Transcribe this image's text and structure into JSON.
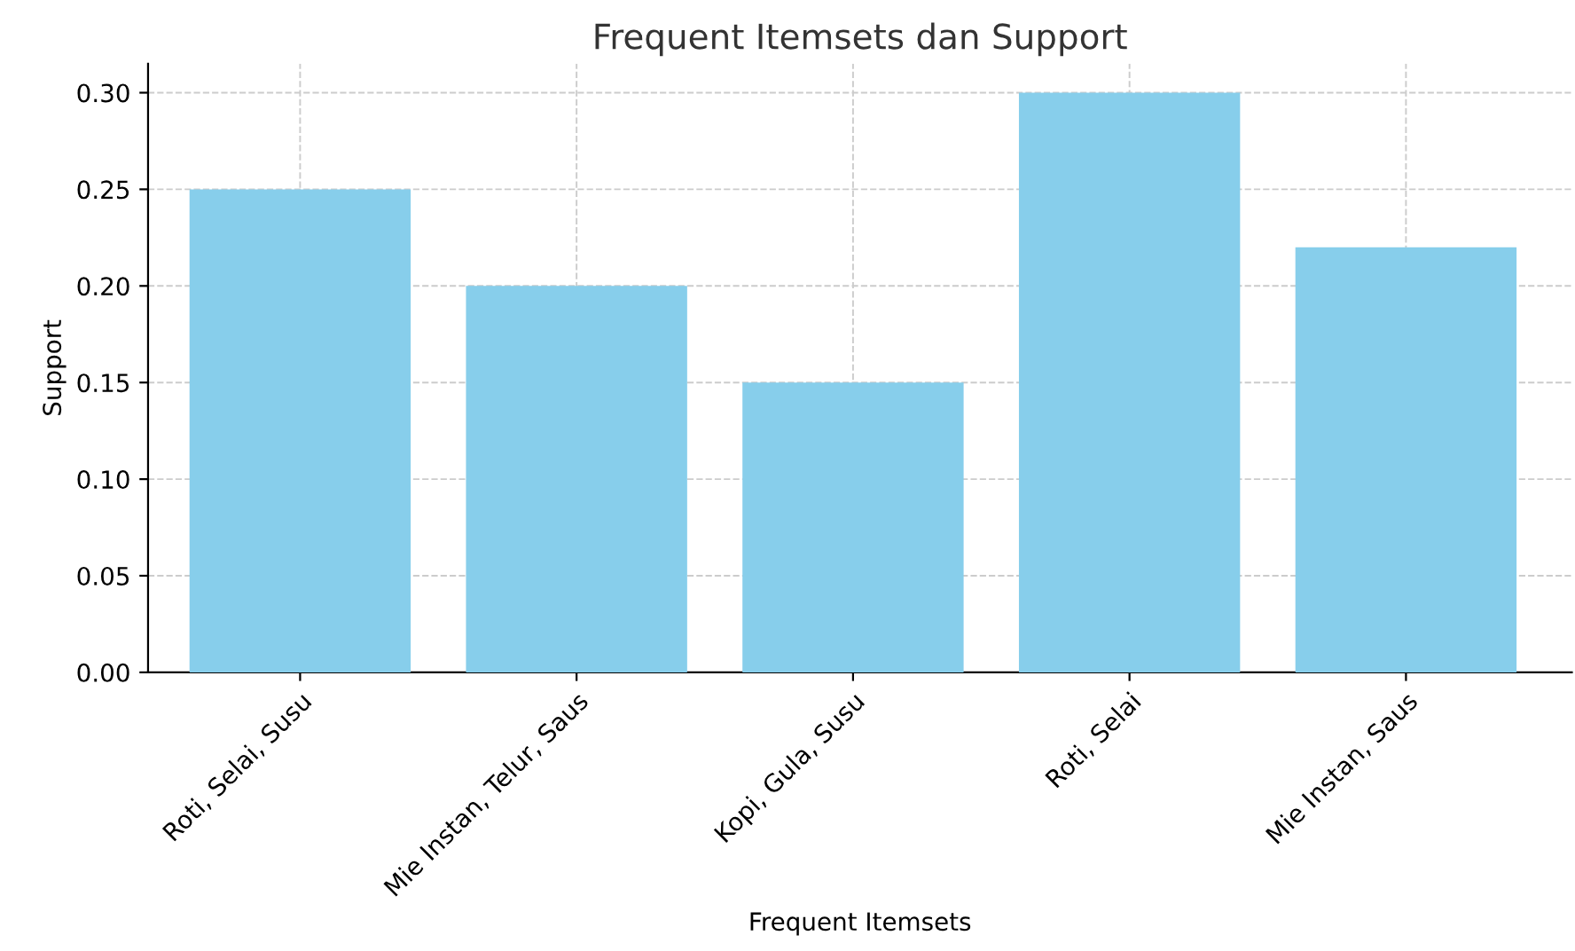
{
  "chart_data": {
    "type": "bar",
    "title": "Frequent Itemsets dan Support",
    "xlabel": "Frequent Itemsets",
    "ylabel": "Support",
    "categories": [
      "Roti, Selai, Susu",
      "Mie Instan, Telur, Saus",
      "Kopi, Gula, Susu",
      "Roti, Selai",
      "Mie Instan, Saus"
    ],
    "values": [
      0.25,
      0.2,
      0.15,
      0.3,
      0.22
    ],
    "color": "#87ceeb",
    "ylim": [
      0,
      0.315
    ],
    "yticks": [
      {
        "value": 0,
        "label": "0.00"
      },
      {
        "value": 0.05,
        "label": "0.05"
      },
      {
        "value": 0.1,
        "label": "0.10"
      },
      {
        "value": 0.15,
        "label": "0.15"
      },
      {
        "value": 0.2,
        "label": "0.20"
      },
      {
        "value": 0.25,
        "label": "0.25"
      },
      {
        "value": 0.3,
        "label": "0.30"
      }
    ],
    "grid": true
  }
}
